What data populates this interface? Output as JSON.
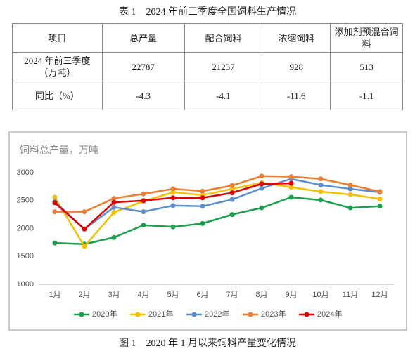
{
  "table_title": "表 1　2024 年前三季度全国饲料生产情况",
  "table": {
    "header": [
      "项目",
      "总产量",
      "配合饲料",
      "浓缩饲料",
      "添加剂预混合饲料"
    ],
    "rows": [
      [
        "2024 年前三季度（万吨）",
        22787,
        21237,
        928,
        513
      ],
      [
        "同比（%）",
        -4.3,
        -4.1,
        -11.6,
        -1.1
      ]
    ]
  },
  "chart_data": {
    "type": "line",
    "y_label": "饲料总产量，万吨",
    "categories": [
      "1月",
      "2月",
      "3月",
      "4月",
      "5月",
      "6月",
      "7月",
      "8月",
      "9月",
      "10月",
      "11月",
      "12月"
    ],
    "series": [
      {
        "name": "2020年",
        "color": "#1aa04a",
        "values": [
          1740,
          1720,
          1840,
          2060,
          2030,
          2090,
          2250,
          2370,
          2560,
          2510,
          2370,
          2400
        ]
      },
      {
        "name": "2021年",
        "color": "#f5c000",
        "values": [
          2560,
          1680,
          2290,
          2490,
          2650,
          2600,
          2710,
          2820,
          2740,
          2660,
          2610,
          2530
        ]
      },
      {
        "name": "2022年",
        "color": "#5b8fcf",
        "values": [
          2480,
          1990,
          2380,
          2300,
          2410,
          2400,
          2520,
          2720,
          2890,
          2780,
          2710,
          2650
        ]
      },
      {
        "name": "2023年",
        "color": "#ed7d31",
        "values": [
          2300,
          2300,
          2540,
          2620,
          2710,
          2670,
          2770,
          2940,
          2930,
          2890,
          2780,
          2660
        ]
      },
      {
        "name": "2024年",
        "color": "#e00000",
        "values": [
          2460,
          1990,
          2470,
          2500,
          2550,
          2550,
          2640,
          2800,
          2810,
          null,
          null,
          null
        ]
      }
    ],
    "ylim": [
      1000,
      3000
    ],
    "yticks": [
      1000,
      1500,
      2000,
      2500,
      3000
    ],
    "grid": false
  },
  "figure_caption": "图 1　2020 年 1 月以来饲料产量变化情况"
}
